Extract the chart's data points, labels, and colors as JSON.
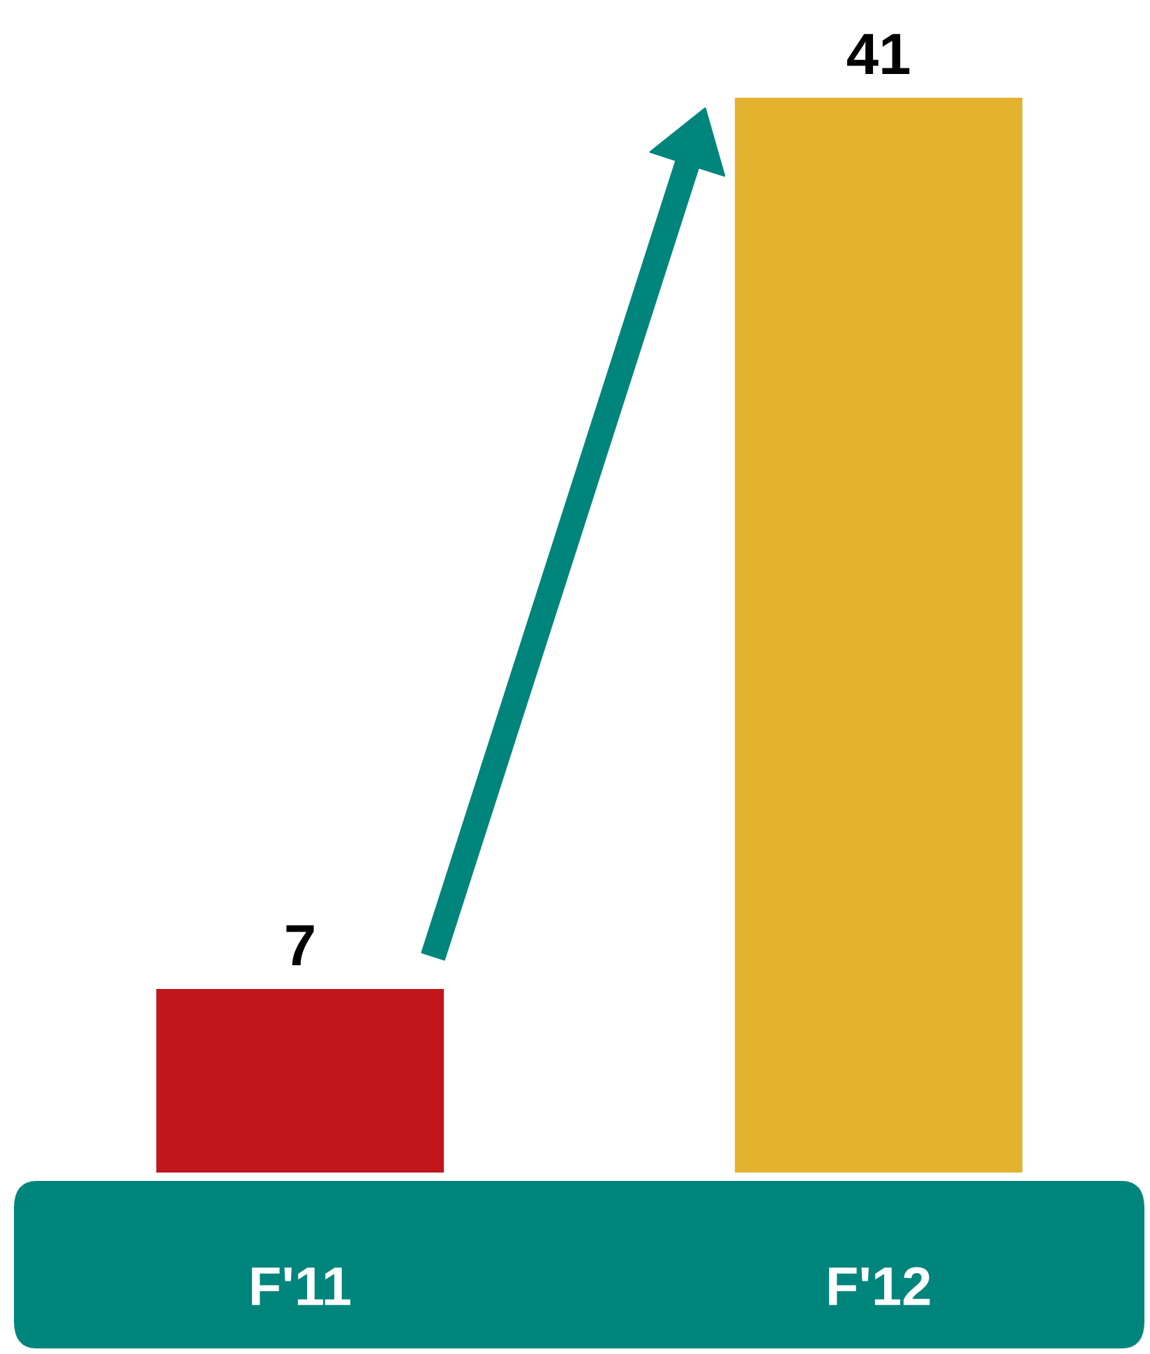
{
  "chart_data": {
    "type": "bar",
    "categories": [
      "F'11",
      "F'12"
    ],
    "values": [
      7,
      41
    ],
    "colors": [
      "#c0161c",
      "#e3b22f"
    ],
    "data_labels": true,
    "grid": false,
    "legend": false
  }
}
